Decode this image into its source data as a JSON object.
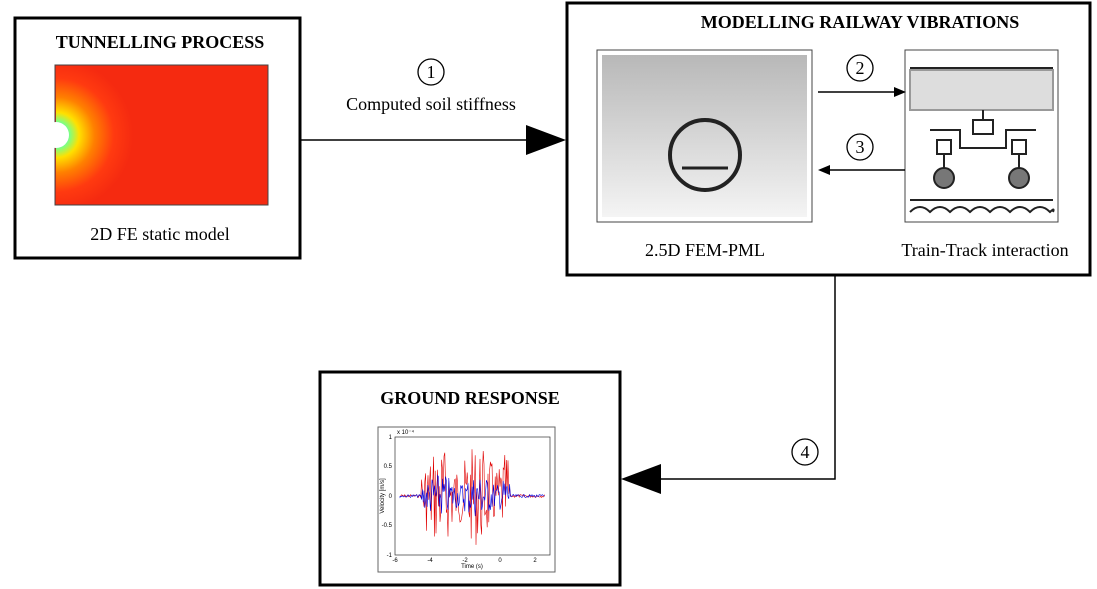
{
  "tunnelling": {
    "title": "TUNNELLING PROCESS",
    "caption": "2D FE static model"
  },
  "arrows": [
    {
      "number": "1",
      "label": "Computed soil stiffness"
    },
    {
      "number": "2"
    },
    {
      "number": "3"
    },
    {
      "number": "4"
    }
  ],
  "railway": {
    "title": "MODELLING RAILWAY VIBRATIONS",
    "captions": [
      "2.5D FEM-PML",
      "Train-Track interaction"
    ]
  },
  "ground": {
    "title": "GROUND RESPONSE",
    "plot": {
      "x_label": "Time (s)",
      "y_label": "Velocity [m/s]",
      "scale": "x 10⁻⁴",
      "xticks": [
        "-6",
        "-4",
        "-2",
        "0",
        "2"
      ],
      "yticks": [
        "1",
        "0.5",
        "0",
        "-0.5",
        "-1"
      ]
    }
  }
}
